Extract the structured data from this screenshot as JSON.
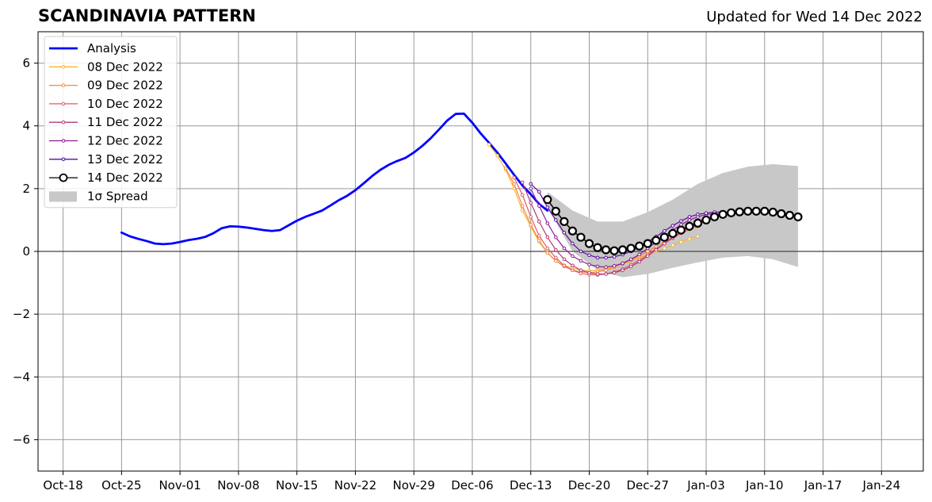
{
  "chart_data": {
    "type": "line",
    "title": "SCANDINAVIA PATTERN",
    "subtitle": "Updated for Wed 14 Dec 2022",
    "xlabel": "",
    "ylabel": "",
    "grid": true,
    "legend_position": "top-left",
    "x_ticks": [
      "2022-10-18",
      "2022-10-25",
      "2022-11-01",
      "2022-11-08",
      "2022-11-15",
      "2022-11-22",
      "2022-11-29",
      "2022-12-06",
      "2022-12-13",
      "2022-12-20",
      "2022-12-27",
      "2023-01-03",
      "2023-01-10",
      "2023-01-17",
      "2023-01-24"
    ],
    "x_tick_labels": [
      "Oct-18",
      "Oct-25",
      "Nov-01",
      "Nov-08",
      "Nov-15",
      "Nov-22",
      "Nov-29",
      "Dec-06",
      "Dec-13",
      "Dec-20",
      "Dec-27",
      "Jan-03",
      "Jan-10",
      "Jan-17",
      "Jan-24"
    ],
    "xlim": [
      "2022-10-15",
      "2023-01-29"
    ],
    "ylim": [
      -7,
      7
    ],
    "y_ticks": [
      -6,
      -4,
      -2,
      0,
      2,
      4,
      6
    ],
    "y_tick_labels": [
      "−6",
      "−4",
      "−2",
      "0",
      "2",
      "4",
      "6"
    ],
    "analysis": {
      "name": "Analysis",
      "color": "#0000ff",
      "start_date": "2022-10-25",
      "values": [
        0.6,
        0.48,
        0.4,
        0.33,
        0.25,
        0.23,
        0.25,
        0.3,
        0.36,
        0.4,
        0.46,
        0.58,
        0.74,
        0.8,
        0.79,
        0.76,
        0.72,
        0.68,
        0.65,
        0.68,
        0.83,
        0.98,
        1.1,
        1.2,
        1.3,
        1.46,
        1.63,
        1.77,
        1.95,
        2.17,
        2.4,
        2.6,
        2.76,
        2.88,
        2.98,
        3.15,
        3.36,
        3.6,
        3.88,
        4.17,
        4.38,
        4.39,
        4.1,
        3.76,
        3.46,
        3.15,
        2.8,
        2.44,
        2.1,
        1.82,
        1.51,
        1.3
      ]
    },
    "spread": {
      "name": "1σ Spread",
      "color": "#c8c8c8",
      "x": [
        "2022-12-15",
        "2022-12-18",
        "2022-12-21",
        "2022-12-24",
        "2022-12-27",
        "2022-12-30",
        "2023-01-02",
        "2023-01-05",
        "2023-01-08",
        "2023-01-11",
        "2023-01-14"
      ],
      "upper": [
        1.9,
        1.3,
        0.95,
        0.95,
        1.25,
        1.65,
        2.15,
        2.5,
        2.7,
        2.78,
        2.72
      ],
      "lower": [
        1.4,
        0.0,
        -0.6,
        -0.82,
        -0.72,
        -0.52,
        -0.35,
        -0.2,
        -0.15,
        -0.25,
        -0.5
      ]
    },
    "series": [
      {
        "name": "08 Dec 2022",
        "color": "#fbb42d",
        "start_date": "2022-12-08",
        "values": [
          3.4,
          3.05,
          2.6,
          2.0,
          1.3,
          0.8,
          0.3,
          -0.05,
          -0.3,
          -0.45,
          -0.53,
          -0.6,
          -0.62,
          -0.6,
          -0.55,
          -0.48,
          -0.4,
          -0.3,
          -0.2,
          -0.1,
          0.0,
          0.1,
          0.2,
          0.3,
          0.4,
          0.48
        ]
      },
      {
        "name": "09 Dec 2022",
        "color": "#f38a3c",
        "start_date": "2022-12-10",
        "values": [
          2.65,
          2.15,
          1.45,
          0.85,
          0.35,
          -0.05,
          -0.3,
          -0.48,
          -0.6,
          -0.65,
          -0.68,
          -0.65,
          -0.6,
          -0.5,
          -0.4,
          -0.28,
          -0.15,
          0.0,
          0.15,
          0.3,
          0.45,
          0.58,
          0.7,
          0.8
        ]
      },
      {
        "name": "10 Dec 2022",
        "color": "#dc5a68",
        "start_date": "2022-12-11",
        "values": [
          2.35,
          1.8,
          1.1,
          0.5,
          0.1,
          -0.2,
          -0.45,
          -0.6,
          -0.7,
          -0.74,
          -0.75,
          -0.72,
          -0.66,
          -0.56,
          -0.43,
          -0.28,
          -0.1,
          0.08,
          0.25,
          0.42,
          0.58,
          0.72,
          0.85,
          0.95
        ]
      },
      {
        "name": "11 Dec 2022",
        "color": "#b5367a",
        "start_date": "2022-12-12",
        "values": [
          2.2,
          1.55,
          0.95,
          0.45,
          0.05,
          -0.25,
          -0.45,
          -0.6,
          -0.68,
          -0.72,
          -0.72,
          -0.68,
          -0.6,
          -0.48,
          -0.33,
          -0.15,
          0.05,
          0.25,
          0.45,
          0.62,
          0.8,
          0.95,
          1.05,
          1.12
        ]
      },
      {
        "name": "12 Dec 2022",
        "color": "#8c1a96",
        "start_date": "2022-12-13",
        "values": [
          2.0,
          1.45,
          0.9,
          0.45,
          0.1,
          -0.15,
          -0.3,
          -0.42,
          -0.48,
          -0.5,
          -0.46,
          -0.38,
          -0.25,
          -0.1,
          0.1,
          0.3,
          0.5,
          0.68,
          0.85,
          1.0,
          1.1,
          1.18,
          1.2,
          1.15
        ]
      },
      {
        "name": "13 Dec 2022",
        "color": "#5a0aa0",
        "start_date": "2022-12-13",
        "values": [
          2.15,
          1.9,
          1.4,
          1.0,
          0.6,
          0.25,
          0.0,
          -0.12,
          -0.2,
          -0.2,
          -0.17,
          -0.1,
          0.0,
          0.13,
          0.3,
          0.47,
          0.65,
          0.82,
          0.97,
          1.1,
          1.18,
          1.22,
          1.25,
          1.25
        ]
      },
      {
        "name": "14 Dec 2022",
        "color": "#000000",
        "start_date": "2022-12-15",
        "values": [
          1.65,
          1.28,
          0.95,
          0.65,
          0.45,
          0.25,
          0.12,
          0.05,
          0.02,
          0.05,
          0.1,
          0.17,
          0.25,
          0.35,
          0.45,
          0.57,
          0.68,
          0.8,
          0.9,
          1.0,
          1.1,
          1.18,
          1.23,
          1.26,
          1.28,
          1.28,
          1.28,
          1.25,
          1.2,
          1.15,
          1.1
        ]
      }
    ]
  }
}
